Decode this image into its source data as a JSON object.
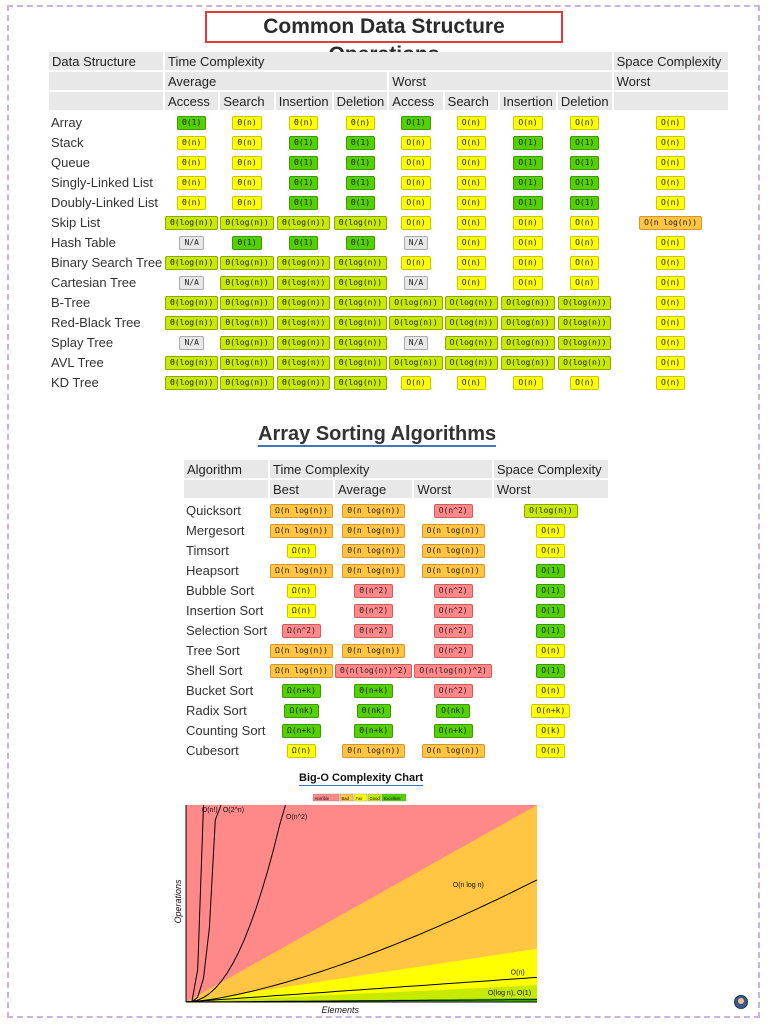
{
  "title": "Common Data Structure Operations",
  "ops_table": {
    "header1": {
      "name": "Data Structure",
      "time": "Time Complexity",
      "space": "Space Complexity"
    },
    "header2": {
      "average": "Average",
      "worst": "Worst",
      "space_worst": "Worst"
    },
    "header3": [
      "Access",
      "Search",
      "Insertion",
      "Deletion",
      "Access",
      "Search",
      "Insertion",
      "Deletion"
    ],
    "rows": [
      {
        "name": "Array",
        "cells": [
          [
            "Θ(1)",
            "g"
          ],
          [
            "Θ(n)",
            "y"
          ],
          [
            "Θ(n)",
            "y"
          ],
          [
            "Θ(n)",
            "y"
          ],
          [
            "O(1)",
            "g"
          ],
          [
            "O(n)",
            "y"
          ],
          [
            "O(n)",
            "y"
          ],
          [
            "O(n)",
            "y"
          ],
          [
            "O(n)",
            "y"
          ]
        ]
      },
      {
        "name": "Stack",
        "cells": [
          [
            "Θ(n)",
            "y"
          ],
          [
            "Θ(n)",
            "y"
          ],
          [
            "Θ(1)",
            "g"
          ],
          [
            "Θ(1)",
            "g"
          ],
          [
            "O(n)",
            "y"
          ],
          [
            "O(n)",
            "y"
          ],
          [
            "O(1)",
            "g"
          ],
          [
            "O(1)",
            "g"
          ],
          [
            "O(n)",
            "y"
          ]
        ]
      },
      {
        "name": "Queue",
        "cells": [
          [
            "Θ(n)",
            "y"
          ],
          [
            "Θ(n)",
            "y"
          ],
          [
            "Θ(1)",
            "g"
          ],
          [
            "Θ(1)",
            "g"
          ],
          [
            "O(n)",
            "y"
          ],
          [
            "O(n)",
            "y"
          ],
          [
            "O(1)",
            "g"
          ],
          [
            "O(1)",
            "g"
          ],
          [
            "O(n)",
            "y"
          ]
        ]
      },
      {
        "name": "Singly-Linked List",
        "cells": [
          [
            "Θ(n)",
            "y"
          ],
          [
            "Θ(n)",
            "y"
          ],
          [
            "Θ(1)",
            "g"
          ],
          [
            "Θ(1)",
            "g"
          ],
          [
            "O(n)",
            "y"
          ],
          [
            "O(n)",
            "y"
          ],
          [
            "O(1)",
            "g"
          ],
          [
            "O(1)",
            "g"
          ],
          [
            "O(n)",
            "y"
          ]
        ]
      },
      {
        "name": "Doubly-Linked List",
        "cells": [
          [
            "Θ(n)",
            "y"
          ],
          [
            "Θ(n)",
            "y"
          ],
          [
            "Θ(1)",
            "g"
          ],
          [
            "Θ(1)",
            "g"
          ],
          [
            "O(n)",
            "y"
          ],
          [
            "O(n)",
            "y"
          ],
          [
            "O(1)",
            "g"
          ],
          [
            "O(1)",
            "g"
          ],
          [
            "O(n)",
            "y"
          ]
        ]
      },
      {
        "name": "Skip List",
        "cells": [
          [
            "Θ(log(n))",
            "lg"
          ],
          [
            "Θ(log(n))",
            "lg"
          ],
          [
            "Θ(log(n))",
            "lg"
          ],
          [
            "Θ(log(n))",
            "lg"
          ],
          [
            "O(n)",
            "y"
          ],
          [
            "O(n)",
            "y"
          ],
          [
            "O(n)",
            "y"
          ],
          [
            "O(n)",
            "y"
          ],
          [
            "O(n log(n))",
            "o"
          ]
        ]
      },
      {
        "name": "Hash Table",
        "cells": [
          [
            "N/A",
            "gr"
          ],
          [
            "Θ(1)",
            "g"
          ],
          [
            "Θ(1)",
            "g"
          ],
          [
            "Θ(1)",
            "g"
          ],
          [
            "N/A",
            "gr"
          ],
          [
            "O(n)",
            "y"
          ],
          [
            "O(n)",
            "y"
          ],
          [
            "O(n)",
            "y"
          ],
          [
            "O(n)",
            "y"
          ]
        ]
      },
      {
        "name": "Binary Search Tree",
        "cells": [
          [
            "Θ(log(n))",
            "lg"
          ],
          [
            "Θ(log(n))",
            "lg"
          ],
          [
            "Θ(log(n))",
            "lg"
          ],
          [
            "Θ(log(n))",
            "lg"
          ],
          [
            "O(n)",
            "y"
          ],
          [
            "O(n)",
            "y"
          ],
          [
            "O(n)",
            "y"
          ],
          [
            "O(n)",
            "y"
          ],
          [
            "O(n)",
            "y"
          ]
        ]
      },
      {
        "name": "Cartesian Tree",
        "cells": [
          [
            "N/A",
            "gr"
          ],
          [
            "Θ(log(n))",
            "lg"
          ],
          [
            "Θ(log(n))",
            "lg"
          ],
          [
            "Θ(log(n))",
            "lg"
          ],
          [
            "N/A",
            "gr"
          ],
          [
            "O(n)",
            "y"
          ],
          [
            "O(n)",
            "y"
          ],
          [
            "O(n)",
            "y"
          ],
          [
            "O(n)",
            "y"
          ]
        ]
      },
      {
        "name": "B-Tree",
        "cells": [
          [
            "Θ(log(n))",
            "lg"
          ],
          [
            "Θ(log(n))",
            "lg"
          ],
          [
            "Θ(log(n))",
            "lg"
          ],
          [
            "Θ(log(n))",
            "lg"
          ],
          [
            "O(log(n))",
            "lg"
          ],
          [
            "O(log(n))",
            "lg"
          ],
          [
            "O(log(n))",
            "lg"
          ],
          [
            "O(log(n))",
            "lg"
          ],
          [
            "O(n)",
            "y"
          ]
        ]
      },
      {
        "name": "Red-Black Tree",
        "cells": [
          [
            "Θ(log(n))",
            "lg"
          ],
          [
            "Θ(log(n))",
            "lg"
          ],
          [
            "Θ(log(n))",
            "lg"
          ],
          [
            "Θ(log(n))",
            "lg"
          ],
          [
            "O(log(n))",
            "lg"
          ],
          [
            "O(log(n))",
            "lg"
          ],
          [
            "O(log(n))",
            "lg"
          ],
          [
            "O(log(n))",
            "lg"
          ],
          [
            "O(n)",
            "y"
          ]
        ]
      },
      {
        "name": "Splay Tree",
        "cells": [
          [
            "N/A",
            "gr"
          ],
          [
            "Θ(log(n))",
            "lg"
          ],
          [
            "Θ(log(n))",
            "lg"
          ],
          [
            "Θ(log(n))",
            "lg"
          ],
          [
            "N/A",
            "gr"
          ],
          [
            "O(log(n))",
            "lg"
          ],
          [
            "O(log(n))",
            "lg"
          ],
          [
            "O(log(n))",
            "lg"
          ],
          [
            "O(n)",
            "y"
          ]
        ]
      },
      {
        "name": "AVL Tree",
        "cells": [
          [
            "Θ(log(n))",
            "lg"
          ],
          [
            "Θ(log(n))",
            "lg"
          ],
          [
            "Θ(log(n))",
            "lg"
          ],
          [
            "Θ(log(n))",
            "lg"
          ],
          [
            "O(log(n))",
            "lg"
          ],
          [
            "O(log(n))",
            "lg"
          ],
          [
            "O(log(n))",
            "lg"
          ],
          [
            "O(log(n))",
            "lg"
          ],
          [
            "O(n)",
            "y"
          ]
        ]
      },
      {
        "name": "KD Tree",
        "cells": [
          [
            "Θ(log(n))",
            "lg"
          ],
          [
            "Θ(log(n))",
            "lg"
          ],
          [
            "Θ(log(n))",
            "lg"
          ],
          [
            "Θ(log(n))",
            "lg"
          ],
          [
            "O(n)",
            "y"
          ],
          [
            "O(n)",
            "y"
          ],
          [
            "O(n)",
            "y"
          ],
          [
            "O(n)",
            "y"
          ],
          [
            "O(n)",
            "y"
          ]
        ]
      }
    ]
  },
  "sort_title": "Array Sorting Algorithms",
  "sort_table": {
    "header1": {
      "name": "Algorithm",
      "time": "Time Complexity",
      "space": "Space Complexity"
    },
    "header2": [
      "Best",
      "Average",
      "Worst",
      "Worst"
    ],
    "rows": [
      {
        "name": "Quicksort",
        "cells": [
          [
            "Ω(n log(n))",
            "o"
          ],
          [
            "Θ(n log(n))",
            "o"
          ],
          [
            "O(n^2)",
            "r"
          ],
          [
            "O(log(n))",
            "lg"
          ]
        ]
      },
      {
        "name": "Mergesort",
        "cells": [
          [
            "Ω(n log(n))",
            "o"
          ],
          [
            "Θ(n log(n))",
            "o"
          ],
          [
            "O(n log(n))",
            "o"
          ],
          [
            "O(n)",
            "y"
          ]
        ]
      },
      {
        "name": "Timsort",
        "cells": [
          [
            "Ω(n)",
            "y"
          ],
          [
            "Θ(n log(n))",
            "o"
          ],
          [
            "O(n log(n))",
            "o"
          ],
          [
            "O(n)",
            "y"
          ]
        ]
      },
      {
        "name": "Heapsort",
        "cells": [
          [
            "Ω(n log(n))",
            "o"
          ],
          [
            "Θ(n log(n))",
            "o"
          ],
          [
            "O(n log(n))",
            "o"
          ],
          [
            "O(1)",
            "g"
          ]
        ]
      },
      {
        "name": "Bubble Sort",
        "cells": [
          [
            "Ω(n)",
            "y"
          ],
          [
            "Θ(n^2)",
            "r"
          ],
          [
            "O(n^2)",
            "r"
          ],
          [
            "O(1)",
            "g"
          ]
        ]
      },
      {
        "name": "Insertion Sort",
        "cells": [
          [
            "Ω(n)",
            "y"
          ],
          [
            "Θ(n^2)",
            "r"
          ],
          [
            "O(n^2)",
            "r"
          ],
          [
            "O(1)",
            "g"
          ]
        ]
      },
      {
        "name": "Selection Sort",
        "cells": [
          [
            "Ω(n^2)",
            "r"
          ],
          [
            "Θ(n^2)",
            "r"
          ],
          [
            "O(n^2)",
            "r"
          ],
          [
            "O(1)",
            "g"
          ]
        ]
      },
      {
        "name": "Tree Sort",
        "cells": [
          [
            "Ω(n log(n))",
            "o"
          ],
          [
            "Θ(n log(n))",
            "o"
          ],
          [
            "O(n^2)",
            "r"
          ],
          [
            "O(n)",
            "y"
          ]
        ]
      },
      {
        "name": "Shell Sort",
        "cells": [
          [
            "Ω(n log(n))",
            "o"
          ],
          [
            "Θ(n(log(n))^2)",
            "r"
          ],
          [
            "O(n(log(n))^2)",
            "r"
          ],
          [
            "O(1)",
            "g"
          ]
        ]
      },
      {
        "name": "Bucket Sort",
        "cells": [
          [
            "Ω(n+k)",
            "g"
          ],
          [
            "Θ(n+k)",
            "g"
          ],
          [
            "O(n^2)",
            "r"
          ],
          [
            "O(n)",
            "y"
          ]
        ]
      },
      {
        "name": "Radix Sort",
        "cells": [
          [
            "Ω(nk)",
            "g"
          ],
          [
            "Θ(nk)",
            "g"
          ],
          [
            "O(nk)",
            "g"
          ],
          [
            "O(n+k)",
            "y"
          ]
        ]
      },
      {
        "name": "Counting Sort",
        "cells": [
          [
            "Ω(n+k)",
            "g"
          ],
          [
            "Θ(n+k)",
            "g"
          ],
          [
            "O(n+k)",
            "g"
          ],
          [
            "O(k)",
            "y"
          ]
        ]
      },
      {
        "name": "Cubesort",
        "cells": [
          [
            "Ω(n)",
            "y"
          ],
          [
            "Θ(n log(n))",
            "o"
          ],
          [
            "O(n log(n))",
            "o"
          ],
          [
            "O(n)",
            "y"
          ]
        ]
      }
    ]
  },
  "chart_data": {
    "type": "area",
    "title": "Big-O Complexity Chart",
    "xlabel": "Elements",
    "ylabel": "Operations",
    "legend": [
      "Horrible",
      "Bad",
      "Fair",
      "Good",
      "Excellent"
    ],
    "legend_placement": "top-center",
    "region_colors": {
      "Horrible": "#ff8989",
      "Bad": "#ffc543",
      "Fair": "#ffff00",
      "Good": "#c8ea00",
      "Excellent": "#53d000"
    },
    "curves": [
      "O(n!)",
      "O(2^n)",
      "O(n^2)",
      "O(n log n)",
      "O(n)",
      "O(log n), O(1)"
    ],
    "curve_labels": [
      "O(n!)",
      "O(2^n)",
      "O(n^2)",
      "O(n log n)",
      "O(n)",
      "O(log n), O(1)"
    ]
  },
  "colors": {
    "frame": "#c9b3e0",
    "title_border": "#e03b36",
    "link_underline": "#3c78c2"
  }
}
